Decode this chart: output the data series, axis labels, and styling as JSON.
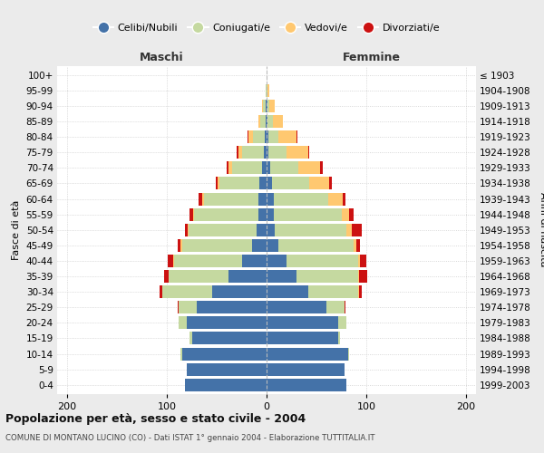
{
  "age_groups": [
    "0-4",
    "5-9",
    "10-14",
    "15-19",
    "20-24",
    "25-29",
    "30-34",
    "35-39",
    "40-44",
    "45-49",
    "50-54",
    "55-59",
    "60-64",
    "65-69",
    "70-74",
    "75-79",
    "80-84",
    "85-89",
    "90-94",
    "95-99",
    "100+"
  ],
  "birth_years": [
    "1999-2003",
    "1994-1998",
    "1989-1993",
    "1984-1988",
    "1979-1983",
    "1974-1978",
    "1969-1973",
    "1964-1968",
    "1959-1963",
    "1954-1958",
    "1949-1953",
    "1944-1948",
    "1939-1943",
    "1934-1938",
    "1929-1933",
    "1924-1928",
    "1919-1923",
    "1914-1918",
    "1909-1913",
    "1904-1908",
    "≤ 1903"
  ],
  "maschi": {
    "celibi": [
      82,
      80,
      85,
      75,
      80,
      70,
      55,
      38,
      25,
      15,
      10,
      8,
      8,
      7,
      5,
      3,
      2,
      1,
      1,
      0,
      0
    ],
    "coniugati": [
      0,
      0,
      1,
      2,
      8,
      18,
      50,
      60,
      68,
      70,
      68,
      65,
      55,
      40,
      30,
      22,
      12,
      5,
      3,
      1,
      0
    ],
    "vedovi": [
      0,
      0,
      0,
      0,
      0,
      0,
      0,
      0,
      1,
      1,
      1,
      1,
      2,
      2,
      3,
      3,
      4,
      2,
      1,
      0,
      0
    ],
    "divorziati": [
      0,
      0,
      0,
      0,
      0,
      1,
      2,
      5,
      5,
      3,
      3,
      3,
      3,
      2,
      2,
      2,
      1,
      0,
      0,
      0,
      0
    ]
  },
  "femmine": {
    "nubili": [
      80,
      78,
      82,
      72,
      72,
      60,
      42,
      30,
      20,
      12,
      8,
      7,
      7,
      5,
      4,
      2,
      2,
      1,
      1,
      0,
      0
    ],
    "coniugate": [
      0,
      0,
      1,
      2,
      8,
      18,
      50,
      62,
      72,
      75,
      72,
      68,
      55,
      38,
      28,
      18,
      10,
      5,
      2,
      1,
      0
    ],
    "vedove": [
      0,
      0,
      0,
      0,
      0,
      0,
      1,
      1,
      2,
      3,
      5,
      8,
      14,
      20,
      22,
      22,
      18,
      10,
      5,
      2,
      0
    ],
    "divorziate": [
      0,
      0,
      0,
      0,
      0,
      1,
      2,
      8,
      6,
      4,
      10,
      4,
      3,
      2,
      2,
      1,
      1,
      0,
      0,
      0,
      0
    ]
  },
  "color_celibi": "#4472a8",
  "color_coniugati": "#c5d9a0",
  "color_vedovi": "#ffc870",
  "color_divorziati": "#cc1111",
  "title": "Popolazione per età, sesso e stato civile - 2004",
  "subtitle": "COMUNE DI MONTANO LUCINO (CO) - Dati ISTAT 1° gennaio 2004 - Elaborazione TUTTITALIA.IT",
  "ylabel_left": "Fasce di età",
  "ylabel_right": "Anni di nascita",
  "bg_color": "#ebebeb",
  "plot_bg": "#ffffff",
  "maschi_label": "Maschi",
  "femmine_label": "Femmine",
  "legend_labels": [
    "Celibi/Nubili",
    "Coniugati/e",
    "Vedovi/e",
    "Divorziati/e"
  ]
}
